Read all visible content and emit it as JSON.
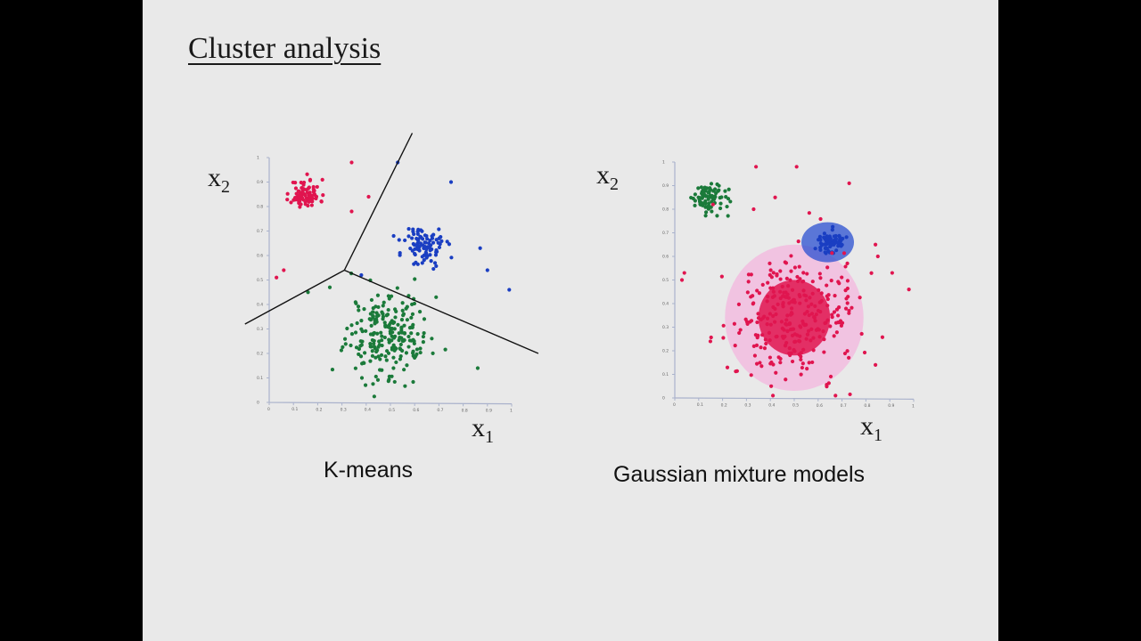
{
  "slide": {
    "title": "Cluster analysis"
  },
  "colors": {
    "red": "#e0154f",
    "green": "#1b7a3a",
    "blue": "#1a3ec2",
    "red_region": "#e0154f",
    "pink_region": "#f2b9df",
    "blue_region": "#2a4fd0",
    "boundary": "#111111",
    "axis": "#aab2cc"
  },
  "chart_data": [
    {
      "type": "scatter",
      "title": "",
      "xlabel": "x",
      "xlabel_sub": "1",
      "ylabel": "x",
      "ylabel_sub": "2",
      "xlim": [
        0,
        1
      ],
      "ylim": [
        0,
        1
      ],
      "xticks": [
        "0",
        "0.1",
        "0.2",
        "0.3",
        "0.4",
        "0.5",
        "0.6",
        "0.7",
        "0.8",
        "0.9",
        "1"
      ],
      "yticks": [
        "0",
        "0.1",
        "0.2",
        "0.3",
        "0.4",
        "0.5",
        "0.6",
        "0.7",
        "0.8",
        "0.9",
        "1"
      ],
      "caption": "K-means",
      "clusters": [
        {
          "color": "red",
          "center": [
            0.15,
            0.85
          ],
          "spread": [
            0.03,
            0.03
          ],
          "count": 85
        },
        {
          "color": "blue",
          "center": [
            0.64,
            0.64
          ],
          "spread": [
            0.045,
            0.045
          ],
          "count": 90
        },
        {
          "color": "green",
          "center": [
            0.49,
            0.28
          ],
          "spread": [
            0.085,
            0.085
          ],
          "count": 230
        }
      ],
      "outliers": [
        {
          "color": "red",
          "points": [
            [
              0.34,
              0.98
            ],
            [
              0.41,
              0.84
            ],
            [
              0.34,
              0.78
            ],
            [
              0.03,
              0.51
            ],
            [
              0.06,
              0.54
            ]
          ]
        },
        {
          "color": "blue",
          "points": [
            [
              0.53,
              0.98
            ],
            [
              0.75,
              0.9
            ],
            [
              0.87,
              0.63
            ],
            [
              0.9,
              0.54
            ],
            [
              0.99,
              0.46
            ],
            [
              0.38,
              0.52
            ]
          ]
        },
        {
          "color": "green",
          "points": [
            [
              0.86,
              0.14
            ],
            [
              0.16,
              0.45
            ],
            [
              0.25,
              0.47
            ]
          ]
        }
      ],
      "boundaries": [
        [
          [
            0.31,
            0.54
          ],
          [
            0.59,
            1.1
          ]
        ],
        [
          [
            0.31,
            0.54
          ],
          [
            -0.1,
            0.32
          ]
        ],
        [
          [
            0.31,
            0.54
          ],
          [
            1.11,
            0.2
          ]
        ]
      ]
    },
    {
      "type": "scatter",
      "title": "",
      "xlabel": "x",
      "xlabel_sub": "1",
      "ylabel": "x",
      "ylabel_sub": "2",
      "xlim": [
        0,
        1
      ],
      "ylim": [
        0,
        1
      ],
      "xticks": [
        "0",
        "0.1",
        "0.2",
        "0.3",
        "0.4",
        "0.5",
        "0.6",
        "0.7",
        "0.8",
        "0.9",
        "1"
      ],
      "yticks": [
        "0",
        "0.1",
        "0.2",
        "0.3",
        "0.4",
        "0.5",
        "0.6",
        "0.7",
        "0.8",
        "0.9",
        "1"
      ],
      "caption": "Gaussian mixture models",
      "regions": [
        {
          "color": "pink_region",
          "center": [
            0.5,
            0.34
          ],
          "radius": [
            0.29,
            0.31
          ],
          "opacity": 0.8
        },
        {
          "color": "red_region",
          "center": [
            0.5,
            0.34
          ],
          "radius": [
            0.15,
            0.16
          ],
          "opacity": 0.85
        },
        {
          "color": "blue_region",
          "center": [
            0.64,
            0.66
          ],
          "radius": [
            0.11,
            0.085
          ],
          "opacity": 0.75
        }
      ],
      "clusters": [
        {
          "color": "green",
          "center": [
            0.14,
            0.85
          ],
          "spread": [
            0.035,
            0.03
          ],
          "count": 85
        },
        {
          "color": "blue",
          "center": [
            0.64,
            0.66
          ],
          "spread": [
            0.03,
            0.025
          ],
          "count": 70
        },
        {
          "color": "red",
          "center": [
            0.5,
            0.34
          ],
          "spread": [
            0.13,
            0.13
          ],
          "count": 290
        }
      ],
      "outliers": [
        {
          "color": "red",
          "points": [
            [
              0.34,
              0.98
            ],
            [
              0.51,
              0.98
            ],
            [
              0.73,
              0.91
            ],
            [
              0.84,
              0.65
            ],
            [
              0.85,
              0.6
            ],
            [
              0.91,
              0.53
            ],
            [
              0.98,
              0.46
            ],
            [
              0.04,
              0.53
            ],
            [
              0.03,
              0.5
            ],
            [
              0.16,
              0.82
            ],
            [
              0.33,
              0.8
            ],
            [
              0.42,
              0.85
            ],
            [
              0.84,
              0.14
            ]
          ]
        }
      ]
    }
  ]
}
